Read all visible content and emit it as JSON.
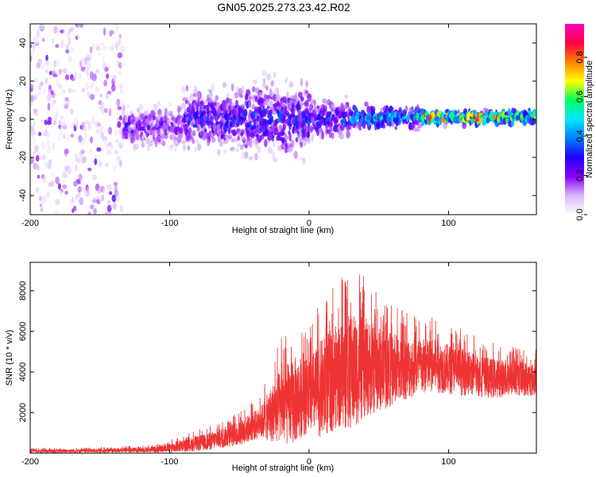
{
  "title": "GN05.2025.273.23.42.R02",
  "chart_data": [
    {
      "type": "heatmap",
      "xlabel": "Height of straight line (km)",
      "ylabel": "Frequency (Hz)",
      "xlim": [
        -200,
        163
      ],
      "ylim": [
        -50,
        50
      ],
      "xticks": [
        -200,
        -100,
        0,
        100
      ],
      "yticks": [
        -40,
        -20,
        0,
        20,
        40
      ],
      "colorbar": {
        "label": "Normalized spectral amplitude",
        "range": [
          0,
          0.97
        ],
        "ticks": [
          0.0,
          0.2,
          0.4,
          0.6,
          0.8
        ],
        "colormap": [
          "#ffffff",
          "#d8b8f8",
          "#8800ff",
          "#2000ff",
          "#0080ff",
          "#00e8ff",
          "#00ff60",
          "#ffff00",
          "#ff8000",
          "#ff0040",
          "#ff00c0"
        ]
      },
      "bands": [
        {
          "x_from": -200,
          "x_to": -133,
          "f_center": 0,
          "f_halfwidth": 50,
          "amp": 0.18
        },
        {
          "x_from": -133,
          "x_to": -90,
          "f_center": -4,
          "f_halfwidth": 9,
          "amp": 0.22
        },
        {
          "x_from": -90,
          "x_to": -45,
          "f_center": 0,
          "f_halfwidth": 14,
          "amp": 0.28
        },
        {
          "x_from": -45,
          "x_to": 0,
          "f_center": 0,
          "f_halfwidth": 16,
          "amp": 0.3
        },
        {
          "x_from": 0,
          "x_to": 30,
          "f_center": 0,
          "f_halfwidth": 9,
          "amp": 0.3
        },
        {
          "x_from": 30,
          "x_to": 80,
          "f_center": 1,
          "f_halfwidth": 5,
          "amp": 0.45
        },
        {
          "x_from": 80,
          "x_to": 163,
          "f_center": 1,
          "f_halfwidth": 3,
          "amp": 0.75
        }
      ]
    },
    {
      "type": "line",
      "xlabel": "Height of straight line (km)",
      "ylabel": "SNR (10 * v/v)",
      "xlim": [
        -200,
        163
      ],
      "ylim": [
        0,
        9400
      ],
      "xticks": [
        -200,
        -100,
        0,
        100
      ],
      "yticks": [
        2000,
        4000,
        6000,
        8000
      ],
      "color": "#ee3333",
      "envelope": {
        "x": [
          -200,
          -150,
          -110,
          -90,
          -70,
          -50,
          -35,
          -20,
          -10,
          0,
          10,
          20,
          30,
          40,
          55,
          70,
          90,
          110,
          130,
          150,
          163
        ],
        "mean": [
          100,
          120,
          180,
          350,
          600,
          1000,
          1500,
          2300,
          2600,
          2900,
          3200,
          3800,
          4000,
          4200,
          4100,
          4200,
          4300,
          4000,
          3700,
          3700,
          3600
        ],
        "peak": [
          250,
          300,
          450,
          900,
          1400,
          2100,
          2900,
          5800,
          6500,
          6200,
          7800,
          8400,
          9300,
          8700,
          7600,
          7000,
          6700,
          6100,
          5500,
          5300,
          5100
        ]
      }
    }
  ]
}
